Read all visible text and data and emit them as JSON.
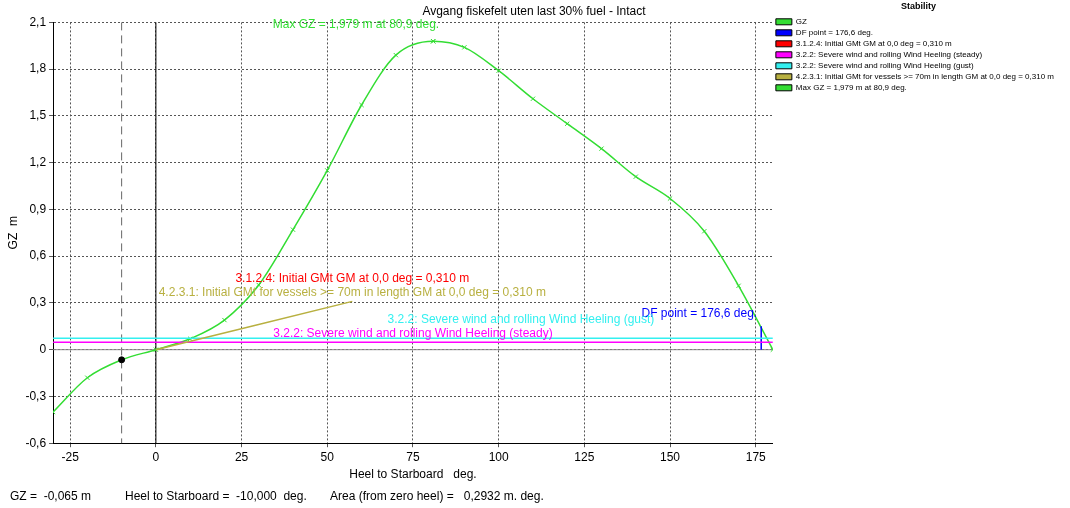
{
  "chart_data": {
    "type": "line",
    "title": "Avgang fiskefelt uten last 30% fuel - Intact",
    "xlabel": "Heel to Starboard   deg.",
    "ylabel": "GZ  m",
    "legend_title": "Stability",
    "legend": "top right",
    "grid": true,
    "xlim": [
      -30,
      180
    ],
    "xticks": [
      -25,
      0,
      25,
      50,
      75,
      100,
      125,
      150,
      175
    ],
    "ylim": [
      -0.6,
      2.1
    ],
    "yticks": [
      {
        "value": -0.6,
        "label": "-0,6"
      },
      {
        "value": -0.3,
        "label": "-0,3"
      },
      0,
      {
        "value": 0.3,
        "label": "0,3"
      },
      {
        "value": 0.6,
        "label": "0,6"
      },
      {
        "value": 0.9,
        "label": "0,9"
      },
      {
        "value": 1.2,
        "label": "1,2"
      },
      {
        "value": 1.5,
        "label": "1,5"
      },
      {
        "value": 1.8,
        "label": "1,8"
      },
      {
        "value": 2.1,
        "label": "2,1"
      }
    ],
    "series": [
      {
        "name": "GZ",
        "color": "#33dd33",
        "marker": "cross",
        "x": [
          -30,
          -20,
          -10,
          0,
          10,
          20,
          30,
          40,
          50,
          60,
          70,
          80.9,
          90,
          100,
          110,
          120,
          130,
          140,
          150,
          160,
          170,
          180
        ],
        "values": [
          -0.4,
          -0.18,
          -0.065,
          0,
          0.07,
          0.19,
          0.415,
          0.77,
          1.15,
          1.57,
          1.89,
          1.979,
          1.94,
          1.79,
          1.61,
          1.45,
          1.29,
          1.11,
          0.97,
          0.76,
          0.41,
          0
        ]
      },
      {
        "name": "DF point = 176,6 deg.",
        "color": "#0000ff",
        "marker": "none",
        "x": [
          176.6,
          176.6
        ],
        "values": [
          0,
          0.15
        ]
      },
      {
        "name": "3.1.2.4: Initial GMt GM at 0,0 deg = 0,310 m",
        "color": "#ff0000",
        "marker": "none"
      },
      {
        "name": "3.2.2: Severe wind and rolling Wind Heeling (steady)",
        "color": "#ff00ff",
        "marker": "none",
        "x": [
          -30,
          180
        ],
        "values": [
          0.048,
          0.048
        ]
      },
      {
        "name": "3.2.2: Severe wind and rolling Wind Heeling (gust)",
        "color": "#33f0f0",
        "marker": "none",
        "x": [
          -30,
          180
        ],
        "values": [
          0.073,
          0.073
        ]
      },
      {
        "name": "4.2.3.1: Initial GMt for vessels >= 70m in length GM at 0,0 deg = 0,310 m",
        "color": "#b8b040",
        "marker": "none",
        "x": [
          0,
          57.3
        ],
        "values": [
          0,
          0.31
        ]
      },
      {
        "name": "Max GZ = 1,979 m at 80,9 deg.",
        "type": "scatter",
        "color": "#33dd33",
        "marker": "cross",
        "x": [
          80.9
        ],
        "values": [
          1.979
        ]
      },
      {
        "type": "scatter",
        "color": "#000000",
        "marker": "circle",
        "x": [
          -10
        ],
        "values": [
          -0.065
        ]
      }
    ],
    "ref_lines": [
      {
        "axis": "x",
        "value": -10,
        "color": "#666666",
        "line_style": "dashed"
      },
      {
        "axis": "x",
        "value": 0,
        "color": "#000000",
        "line_style": "solid"
      },
      {
        "axis": "y",
        "value": 0,
        "color": "#888888",
        "line_style": "solid"
      }
    ],
    "annotations": [
      "GZ =  -0,065 m",
      "Heel to Starboard =  -10,000  deg.",
      "Area (from zero heel) =   0,2932 m. deg."
    ]
  }
}
